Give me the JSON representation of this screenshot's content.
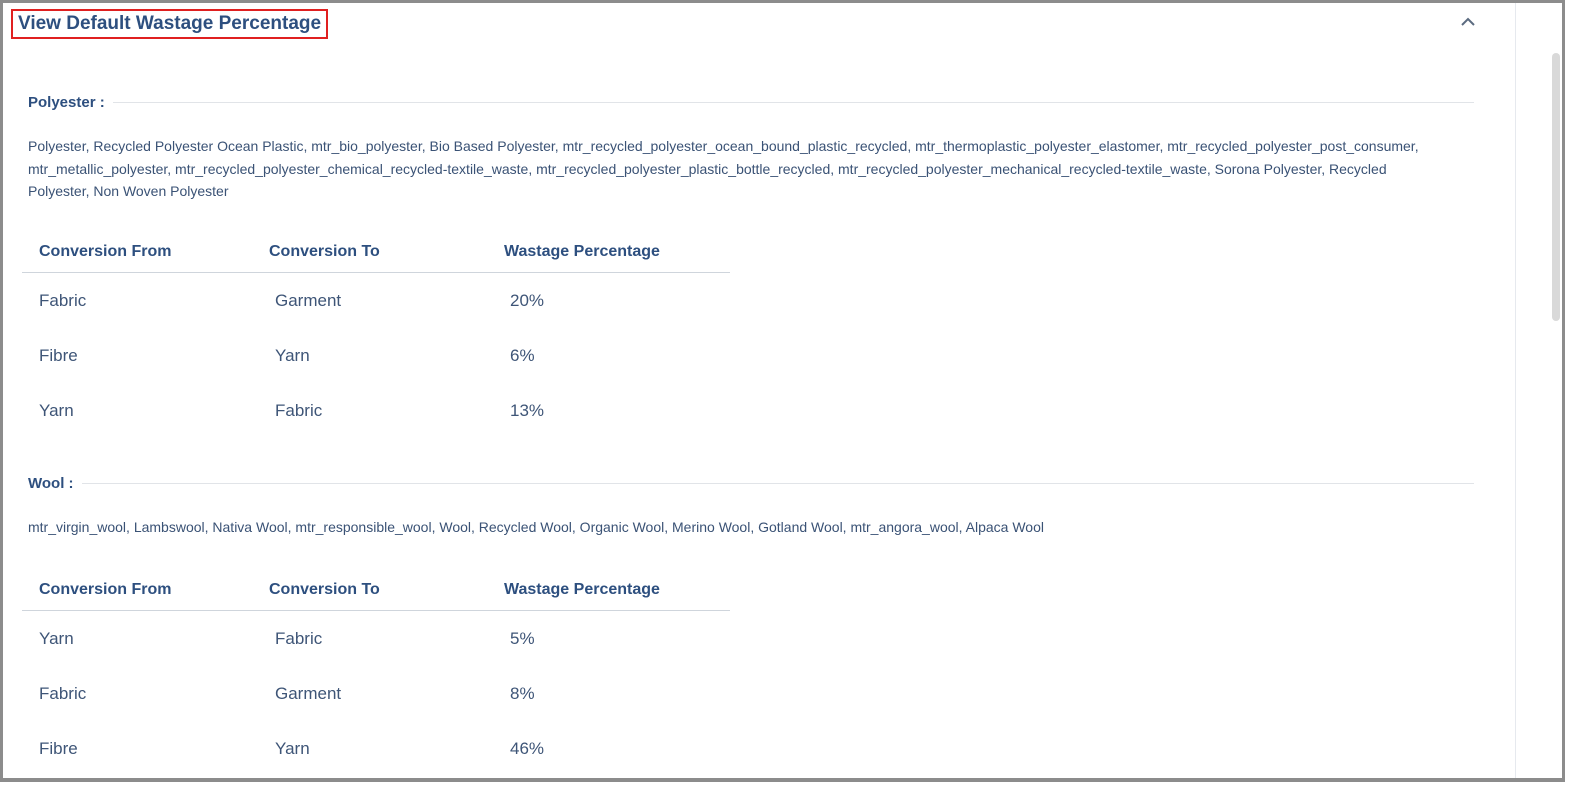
{
  "panel": {
    "title": "View Default Wastage Percentage",
    "collapse_icon": "chevron-up-icon"
  },
  "sections": [
    {
      "label": "Polyester :",
      "materials_lines": [
        "Polyester, Recycled Polyester Ocean Plastic, mtr_bio_polyester, Bio Based Polyester, mtr_recycled_polyester_ocean_bound_plastic_recycled, mtr_thermoplastic_polyester_elastomer, mtr_recycled_polyester_post_consumer,",
        "mtr_metallic_polyester, mtr_recycled_polyester_chemical_recycled-textile_waste, mtr_recycled_polyester_plastic_bottle_recycled, mtr_recycled_polyester_mechanical_recycled-textile_waste, Sorona Polyester, Recycled",
        "Polyester, Non Woven Polyester"
      ],
      "table": {
        "headers": [
          "Conversion From",
          "Conversion To",
          "Wastage Percentage"
        ],
        "rows": [
          [
            "Fabric",
            "Garment",
            "20%"
          ],
          [
            "Fibre",
            "Yarn",
            "6%"
          ],
          [
            "Yarn",
            "Fabric",
            "13%"
          ]
        ]
      }
    },
    {
      "label": "Wool :",
      "materials_lines": [
        "mtr_virgin_wool, Lambswool, Nativa Wool, mtr_responsible_wool, Wool, Recycled Wool, Organic Wool, Merino Wool, Gotland Wool, mtr_angora_wool, Alpaca Wool"
      ],
      "table": {
        "headers": [
          "Conversion From",
          "Conversion To",
          "Wastage Percentage"
        ],
        "rows": [
          [
            "Yarn",
            "Fabric",
            "5%"
          ],
          [
            "Fabric",
            "Garment",
            "8%"
          ],
          [
            "Fibre",
            "Yarn",
            "46%"
          ]
        ]
      }
    }
  ],
  "colors": {
    "title": "#2d4f7f",
    "highlight_border": "#e02020",
    "text": "#3a5275"
  }
}
